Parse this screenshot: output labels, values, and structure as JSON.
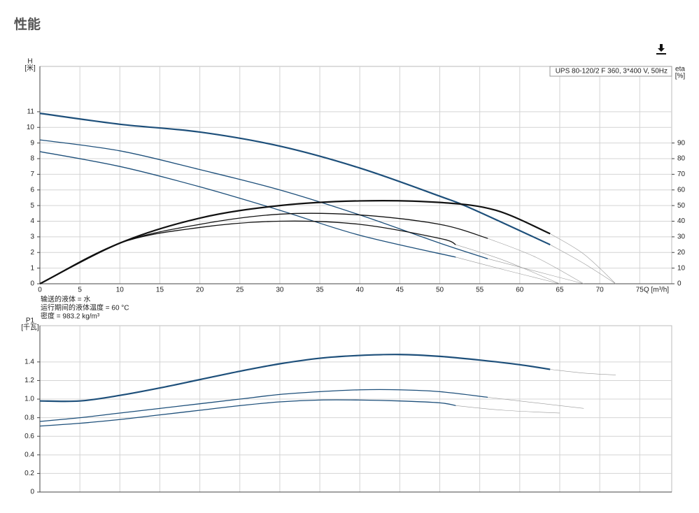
{
  "header": {
    "title": "性能"
  },
  "chart_data": [
    {
      "type": "line",
      "annotation": "UPS 80-120/2 F 360, 3*400 V, 50Hz",
      "xlabel": "Q [m³/h]",
      "ylabel": "H",
      "yunit": "[米]",
      "y2label": "eta",
      "y2unit": "[%]",
      "notes": [
        "输送的液体 = 水",
        "运行期间的液体温度 = 60 °C",
        "密度 = 983.2 kg/m³"
      ],
      "xlim": [
        0,
        79
      ],
      "ylim": [
        0,
        13.9
      ],
      "y2lim": [
        0,
        139
      ],
      "xticks": [
        0,
        5,
        10,
        15,
        20,
        25,
        30,
        35,
        40,
        45,
        50,
        55,
        60,
        65,
        70,
        75
      ],
      "yticks": [
        0,
        1,
        2,
        3,
        4,
        5,
        6,
        7,
        8,
        9,
        10,
        11
      ],
      "y2ticks": [
        0,
        10,
        20,
        30,
        40,
        50,
        60,
        70,
        80,
        90
      ],
      "grid": true,
      "series": [
        {
          "color": "#1d4f7a",
          "width": 2.2,
          "x": [
            0,
            10,
            20,
            30,
            40,
            50,
            54,
            63.8
          ],
          "values": [
            10.9,
            10.2,
            9.7,
            8.8,
            7.4,
            5.6,
            4.8,
            2.5
          ]
        },
        {
          "color": "#999999",
          "width": 0.6,
          "x": [
            63.8,
            68,
            72
          ],
          "values": [
            2.5,
            1.3,
            0
          ]
        },
        {
          "color": "#1d4f7a",
          "width": 1.3,
          "x": [
            0,
            10,
            20,
            30,
            40,
            50,
            56
          ],
          "values": [
            9.2,
            8.5,
            7.3,
            6.0,
            4.4,
            2.6,
            1.6
          ]
        },
        {
          "color": "#999999",
          "width": 0.6,
          "x": [
            56,
            62,
            68
          ],
          "values": [
            1.6,
            0.8,
            0
          ]
        },
        {
          "color": "#1d4f7a",
          "width": 1.3,
          "x": [
            0,
            10,
            20,
            30,
            40,
            52
          ],
          "values": [
            8.45,
            7.5,
            6.2,
            4.7,
            3.1,
            1.7
          ]
        },
        {
          "color": "#999999",
          "width": 0.6,
          "x": [
            52,
            58,
            65
          ],
          "values": [
            1.7,
            0.9,
            0
          ]
        },
        {
          "color": "#111111",
          "width": 2.2,
          "axis": "y2",
          "x": [
            0,
            10,
            20,
            30,
            40,
            50,
            57,
            63.8
          ],
          "values": [
            0,
            26,
            42,
            50,
            53,
            52,
            47,
            32
          ]
        },
        {
          "color": "#999999",
          "width": 0.6,
          "axis": "y2",
          "x": [
            63.8,
            68,
            72
          ],
          "values": [
            32,
            19,
            0
          ]
        },
        {
          "color": "#111111",
          "width": 1.3,
          "axis": "y2",
          "x": [
            0,
            10,
            20,
            30,
            40,
            50,
            56
          ],
          "values": [
            0,
            26,
            38,
            44.5,
            44,
            38,
            29
          ]
        },
        {
          "color": "#999999",
          "width": 0.6,
          "axis": "y2",
          "x": [
            56,
            62,
            68
          ],
          "values": [
            29,
            17,
            0
          ]
        },
        {
          "color": "#111111",
          "width": 1.3,
          "axis": "y2",
          "x": [
            0,
            10,
            20,
            30,
            40,
            50,
            52
          ],
          "values": [
            0,
            26,
            36,
            40,
            38,
            29,
            25
          ]
        },
        {
          "color": "#999999",
          "width": 0.6,
          "axis": "y2",
          "x": [
            52,
            58,
            65
          ],
          "values": [
            25,
            15,
            0
          ]
        }
      ]
    },
    {
      "type": "line",
      "ylabel": "P1",
      "yunit": "[千瓦]",
      "xlim": [
        0,
        79
      ],
      "ylim": [
        0,
        1.79
      ],
      "xticks": [
        0,
        5,
        10,
        15,
        20,
        25,
        30,
        35,
        40,
        45,
        50,
        55,
        60,
        65,
        70,
        75
      ],
      "yticks": [
        0,
        0.2,
        0.4,
        0.6,
        0.8,
        {
          "value": 1,
          "label": "1.0"
        },
        1.2,
        1.4
      ],
      "grid": true,
      "series": [
        {
          "color": "#1d4f7a",
          "width": 2.2,
          "x": [
            0,
            5,
            10,
            15,
            20,
            25,
            30,
            35,
            40,
            45,
            50,
            55,
            60,
            63.8
          ],
          "values": [
            0.98,
            0.98,
            1.04,
            1.12,
            1.21,
            1.3,
            1.38,
            1.44,
            1.47,
            1.48,
            1.46,
            1.42,
            1.37,
            1.32
          ]
        },
        {
          "color": "#999999",
          "width": 0.6,
          "x": [
            63.8,
            68,
            72
          ],
          "values": [
            1.32,
            1.28,
            1.26
          ]
        },
        {
          "color": "#1d4f7a",
          "width": 1.3,
          "x": [
            0,
            5,
            10,
            15,
            20,
            25,
            30,
            35,
            40,
            45,
            50,
            56
          ],
          "values": [
            0.76,
            0.8,
            0.85,
            0.9,
            0.95,
            1.0,
            1.05,
            1.08,
            1.1,
            1.1,
            1.08,
            1.02
          ]
        },
        {
          "color": "#999999",
          "width": 0.6,
          "x": [
            56,
            62,
            68
          ],
          "values": [
            1.02,
            0.96,
            0.9
          ]
        },
        {
          "color": "#1d4f7a",
          "width": 1.3,
          "x": [
            0,
            5,
            10,
            15,
            20,
            25,
            30,
            35,
            40,
            45,
            50,
            52
          ],
          "values": [
            0.71,
            0.74,
            0.78,
            0.83,
            0.88,
            0.93,
            0.97,
            0.99,
            0.99,
            0.98,
            0.96,
            0.93
          ]
        },
        {
          "color": "#999999",
          "width": 0.6,
          "x": [
            52,
            58,
            65
          ],
          "values": [
            0.93,
            0.88,
            0.85
          ]
        }
      ]
    }
  ]
}
